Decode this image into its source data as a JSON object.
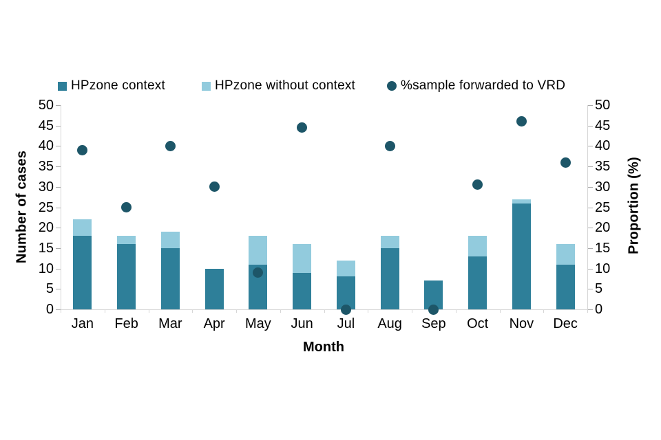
{
  "legend": [
    {
      "label": "HPzone context",
      "marker": "square",
      "color": "#2E7F99"
    },
    {
      "label": "HPzone without context",
      "marker": "square",
      "color": "#92CBDD"
    },
    {
      "label": "%sample forwarded to VRD",
      "marker": "circle",
      "color": "#1D5668"
    }
  ],
  "chart_data": {
    "type": "bar",
    "subtype": "stacked-bars-with-scatter-overlay",
    "categories": [
      "Jan",
      "Feb",
      "Mar",
      "Apr",
      "May",
      "Jun",
      "Jul",
      "Aug",
      "Sep",
      "Oct",
      "Nov",
      "Dec"
    ],
    "series": [
      {
        "name": "HPzone context",
        "render": "bar",
        "stack": "cases",
        "axis": "left",
        "values": [
          18,
          16,
          15,
          10,
          11,
          9,
          8,
          15,
          7,
          13,
          26,
          11
        ],
        "color": "#2E7F99"
      },
      {
        "name": "HPzone without context",
        "render": "bar",
        "stack": "cases",
        "axis": "left",
        "values": [
          4,
          2,
          4,
          0,
          7,
          7,
          4,
          3,
          0,
          5,
          1,
          5
        ],
        "color": "#92CBDD"
      },
      {
        "name": "%sample forwarded to VRD",
        "render": "scatter",
        "axis": "right",
        "values": [
          39,
          25,
          40,
          30,
          9,
          44.5,
          0,
          40,
          0,
          30.5,
          46,
          36
        ],
        "color": "#1D5668"
      }
    ],
    "xlabel": "Month",
    "ylabel_left": "Number of cases",
    "ylabel_right": "Proportion (%)",
    "ylim_left": [
      0,
      50
    ],
    "ylim_right": [
      0,
      50
    ],
    "ticks": [
      0,
      5,
      10,
      15,
      20,
      25,
      30,
      35,
      40,
      45,
      50
    ],
    "grid": false,
    "legend_position": "top"
  }
}
